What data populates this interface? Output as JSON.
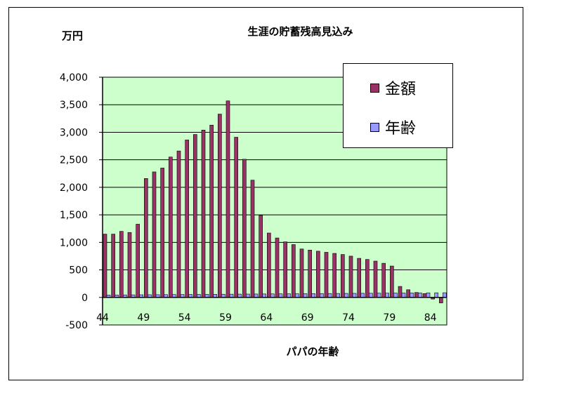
{
  "chart_data": {
    "type": "bar",
    "title": "生涯の貯蓄残高見込み",
    "ylabel": "万円",
    "xlabel": "パパの年齢",
    "ylim": [
      -500,
      4000
    ],
    "y_ticks": [
      "4,000",
      "3,500",
      "3,000",
      "2,500",
      "2,000",
      "1,500",
      "1,000",
      "500",
      "0",
      "-500"
    ],
    "x_tick_labels": [
      "44",
      "49",
      "54",
      "59",
      "64",
      "69",
      "74",
      "79",
      "84"
    ],
    "grid": true,
    "plot_background": "#ccffcc",
    "legend_position": "top-right",
    "categories": [
      44,
      45,
      46,
      47,
      48,
      49,
      50,
      51,
      52,
      53,
      54,
      55,
      56,
      57,
      58,
      59,
      60,
      61,
      62,
      63,
      64,
      65,
      66,
      67,
      68,
      69,
      70,
      71,
      72,
      73,
      74,
      75,
      76,
      77,
      78,
      79,
      80,
      81,
      82,
      83,
      84,
      85
    ],
    "series": [
      {
        "name": "金額",
        "color": "#993366",
        "values": [
          1150,
          1150,
          1200,
          1180,
          1330,
          2160,
          2280,
          2350,
          2550,
          2660,
          2860,
          2960,
          3040,
          3130,
          3330,
          3570,
          2910,
          2510,
          2130,
          1490,
          1170,
          1080,
          1010,
          960,
          880,
          860,
          840,
          820,
          800,
          780,
          750,
          710,
          690,
          660,
          620,
          570,
          200,
          140,
          90,
          70,
          -30,
          -100
        ]
      },
      {
        "name": "年齢",
        "color": "#9999ff",
        "values": [
          44,
          45,
          46,
          47,
          48,
          49,
          50,
          51,
          52,
          53,
          54,
          55,
          56,
          57,
          58,
          59,
          60,
          61,
          62,
          63,
          64,
          65,
          66,
          67,
          68,
          69,
          70,
          71,
          72,
          73,
          74,
          75,
          76,
          77,
          78,
          79,
          80,
          81,
          82,
          83,
          84,
          85
        ]
      }
    ]
  }
}
